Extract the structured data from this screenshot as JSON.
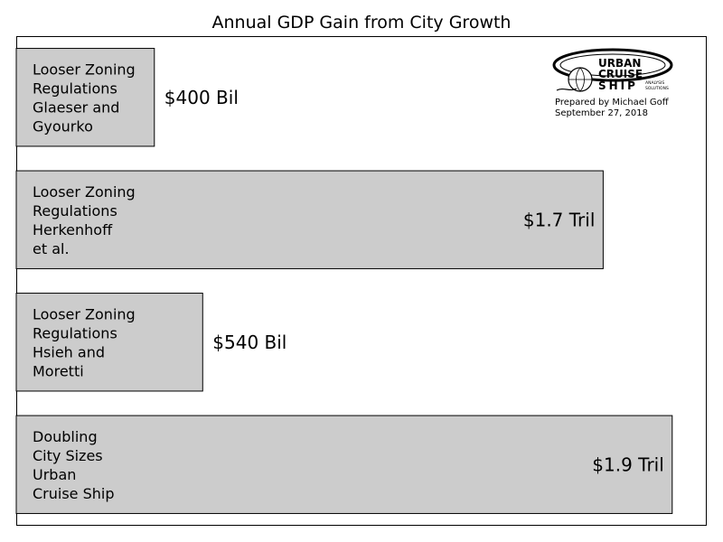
{
  "chart_data": {
    "type": "bar",
    "orientation": "horizontal",
    "title": "Annual GDP Gain from City Growth",
    "categories": [
      "Looser Zoning Regulations Glaeser and Gyourko",
      "Looser Zoning Regulations Herkenhoff et al.",
      "Looser Zoning Regulations Hsieh and Moretti",
      "Doubling City Sizes Urban Cruise Ship"
    ],
    "category_lines": [
      [
        "Looser Zoning",
        "Regulations",
        "Glaeser and",
        "Gyourko"
      ],
      [
        "Looser Zoning",
        "Regulations",
        "Herkenhoff",
        "et al."
      ],
      [
        "Looser Zoning",
        "Regulations",
        "Hsieh and",
        "Moretti"
      ],
      [
        "Doubling",
        "City Sizes",
        "Urban",
        "Cruise Ship"
      ]
    ],
    "values": [
      0.4,
      1.7,
      0.54,
      1.9
    ],
    "unit": "trillion USD",
    "value_labels": [
      "$400 Bil",
      "$1.7 Tril",
      "$540 Bil",
      "$1.9 Tril"
    ],
    "xlim": [
      0,
      2.0
    ],
    "grid": false,
    "axes_ticks": false,
    "bar_color": "#cccccc"
  },
  "logo": {
    "line1": "URBAN",
    "line2": "CRUISE",
    "line3": "SHIP",
    "tag1": "ANALYSIS",
    "tag2": "SOLUTIONS"
  },
  "credit": {
    "prepared_by": "Prepared by Michael Goff",
    "date": "September 27, 2018"
  }
}
